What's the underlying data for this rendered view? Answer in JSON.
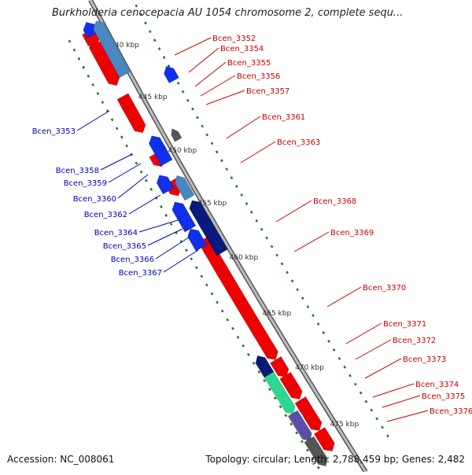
{
  "title": "Burkholderia cenocepacia AU 1054 chromosome 2, complete sequ...",
  "footer": {
    "accession": "Accession: NC_008061",
    "summary": "Topology: circular; Length: 2,788,459 bp; Genes: 2,482"
  },
  "colors": {
    "backbone": "#8a8a8a",
    "forward_gene": "#ee0000",
    "reverse_gene": "#1030ee",
    "reverse_gene_dark": "#0a1a7a",
    "reverse_gene_pale": "#4a86c0",
    "rna_gene": "#2cd890",
    "neutral_gene": "#555555",
    "purple_gene": "#5a4fa8",
    "tick": "#227722",
    "forward_label": "#cc0000",
    "reverse_label": "#0000bb"
  },
  "ruler": [
    {
      "label": "440 kbp"
    },
    {
      "label": "445 kbp"
    },
    {
      "label": "450 kbp"
    },
    {
      "label": "455 kbp"
    },
    {
      "label": "460 kbp"
    },
    {
      "label": "465 kbp"
    },
    {
      "label": "470 kbp"
    },
    {
      "label": "475 kbp"
    }
  ],
  "forward_labels": [
    "Bcen_3352",
    "Bcen_3354",
    "Bcen_3355",
    "Bcen_3356",
    "Bcen_3357",
    "Bcen_3361",
    "Bcen_3363",
    "Bcen_3368",
    "Bcen_3369",
    "Bcen_3370",
    "Bcen_3371",
    "Bcen_3372",
    "Bcen_3373",
    "Bcen_3374",
    "Bcen_3375",
    "Bcen_3376"
  ],
  "reverse_labels": [
    "Bcen_3353",
    "Bcen_3358",
    "Bcen_3359",
    "Bcen_3360",
    "Bcen_3362",
    "Bcen_3364",
    "Bcen_3365",
    "Bcen_3366",
    "Bcen_3367"
  ]
}
